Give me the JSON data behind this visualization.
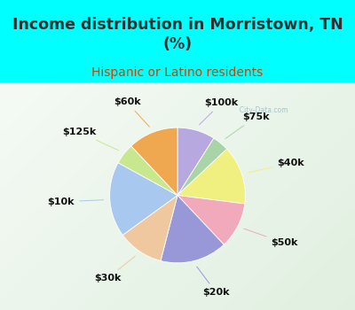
{
  "title": "Income distribution in Morristown, TN\n(%)",
  "subtitle": "Hispanic or Latino residents",
  "labels": [
    "$100k",
    "$75k",
    "$40k",
    "$50k",
    "$20k",
    "$30k",
    "$10k",
    "$125k",
    "$60k"
  ],
  "values": [
    9,
    4,
    14,
    11,
    16,
    11,
    18,
    5,
    12
  ],
  "colors": [
    "#b8a8e0",
    "#a8d4a8",
    "#f0f080",
    "#f0aabb",
    "#9898d8",
    "#f0c8a0",
    "#a8c8f0",
    "#c8e890",
    "#f0a850"
  ],
  "title_color": "#303030",
  "subtitle_color": "#d04000",
  "label_color": "#101010",
  "label_fontsize": 8,
  "title_fontsize": 12.5,
  "subtitle_fontsize": 10,
  "startangle": 90,
  "watermark": "  City-Data.com"
}
